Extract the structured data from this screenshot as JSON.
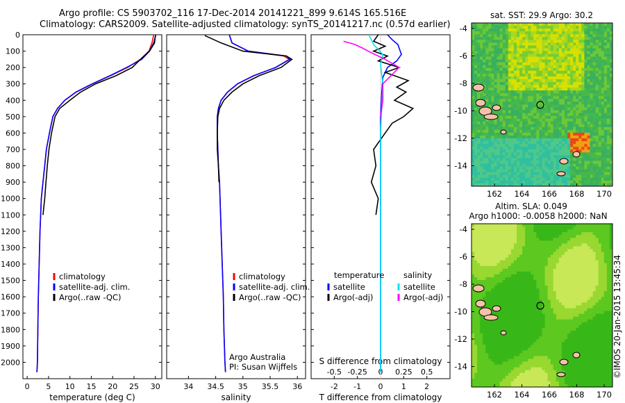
{
  "header": {
    "line1": "Argo profile: CS 5903702_116 17-Dec-2014 20141221_899 9.614S 165.516E",
    "line2": "Climatology: CARS2009. Satellite-adjusted climatology: synTS_20141217.nc (0.57d earlier)"
  },
  "colors": {
    "climatology": "#ff0000",
    "satellite": "#0000ff",
    "argo": "#000000",
    "salinity_satellite": "#00e5ee",
    "salinity_argo": "#ff00ff"
  },
  "chart_data": [
    {
      "type": "line",
      "id": "temperature",
      "xlabel": "temperature (deg C)",
      "ylim": [
        2100,
        0
      ],
      "xlim": [
        -1,
        31.5
      ],
      "xticks": [
        0,
        5,
        10,
        15,
        20,
        25,
        30
      ],
      "yticks": [
        0,
        100,
        200,
        300,
        400,
        500,
        600,
        700,
        800,
        900,
        1000,
        1100,
        1200,
        1300,
        1400,
        1500,
        1600,
        1700,
        1800,
        1900,
        2000
      ],
      "legend": [
        "climatology",
        "satellite-adj. clim.",
        "Argo(..raw -QC)"
      ],
      "series": [
        {
          "name": "climatology",
          "color": "climatology",
          "x": [
            29.6,
            29.2,
            28.5,
            26.5,
            23.5,
            19.5,
            15.3,
            11.5,
            8.8,
            7.1,
            6.0,
            5.2,
            4.5,
            4.1,
            3.7,
            3.3,
            3.0,
            2.8,
            2.6,
            2.5,
            2.4,
            2.3,
            2.25
          ],
          "y": [
            0,
            50,
            100,
            150,
            200,
            250,
            300,
            350,
            400,
            450,
            500,
            600,
            700,
            800,
            900,
            1000,
            1200,
            1400,
            1600,
            1800,
            2000,
            2050,
            2060
          ]
        },
        {
          "name": "satellite-adj. clim.",
          "color": "satellite",
          "x": [
            30.1,
            29.6,
            28.6,
            26.8,
            23.3,
            19.4,
            15.2,
            11.4,
            8.8,
            7.1,
            6.0,
            5.2,
            4.5,
            4.1,
            3.7,
            3.3,
            3.0,
            2.8,
            2.6,
            2.5,
            2.4,
            2.3,
            2.25
          ],
          "y": [
            0,
            50,
            100,
            150,
            200,
            250,
            300,
            350,
            400,
            450,
            500,
            600,
            700,
            800,
            900,
            1000,
            1200,
            1400,
            1600,
            1800,
            2000,
            2050,
            2060
          ]
        },
        {
          "name": "Argo(..raw -QC)",
          "color": "argo",
          "x": [
            30.0,
            29.8,
            28.6,
            26.5,
            24.6,
            20.8,
            16.0,
            12.5,
            10.0,
            7.6,
            6.5,
            5.7,
            5.1,
            4.7,
            4.4,
            4.1,
            3.7
          ],
          "y": [
            5,
            50,
            100,
            150,
            200,
            250,
            300,
            350,
            400,
            450,
            500,
            600,
            700,
            800,
            900,
            1000,
            1100
          ]
        }
      ]
    },
    {
      "type": "line",
      "id": "salinity",
      "xlabel": "salinity",
      "ylim": [
        2100,
        0
      ],
      "xlim": [
        33.6,
        36.15
      ],
      "xticks": [
        34,
        34.5,
        35,
        35.5,
        36
      ],
      "legend": [
        "climatology",
        "satellite-adj. clim.",
        "Argo(..raw -QC)"
      ],
      "credit": [
        "Argo Australia",
        "PI: Susan Wijffels"
      ],
      "series": [
        {
          "name": "climatology",
          "color": "climatology",
          "x": [
            34.75,
            34.8,
            35.1,
            35.75,
            35.85,
            35.6,
            35.2,
            34.9,
            34.72,
            34.6,
            34.55,
            34.53,
            34.53,
            34.54,
            34.55,
            34.57,
            34.6,
            34.62,
            34.64,
            34.65,
            34.67,
            34.68
          ],
          "y": [
            0,
            50,
            100,
            130,
            150,
            200,
            250,
            300,
            350,
            400,
            450,
            500,
            600,
            700,
            800,
            900,
            1200,
            1400,
            1600,
            1800,
            2000,
            2060
          ]
        },
        {
          "name": "satellite-adj. clim.",
          "color": "satellite",
          "x": [
            34.75,
            34.8,
            35.1,
            35.8,
            35.86,
            35.6,
            35.2,
            34.9,
            34.72,
            34.6,
            34.55,
            34.53,
            34.53,
            34.54,
            34.55,
            34.57,
            34.6,
            34.62,
            34.64,
            34.65,
            34.67,
            34.68
          ],
          "y": [
            0,
            50,
            100,
            130,
            150,
            200,
            250,
            300,
            350,
            400,
            450,
            500,
            600,
            700,
            800,
            900,
            1200,
            1400,
            1600,
            1800,
            2000,
            2060
          ]
        },
        {
          "name": "Argo(..raw -QC)",
          "color": "argo",
          "x": [
            34.3,
            34.6,
            35.0,
            35.8,
            35.9,
            35.7,
            35.3,
            35.0,
            34.8,
            34.65,
            34.57,
            34.54,
            34.53,
            34.53,
            34.55,
            34.56
          ],
          "y": [
            5,
            50,
            100,
            130,
            150,
            200,
            250,
            300,
            350,
            400,
            450,
            500,
            600,
            700,
            800,
            900
          ]
        }
      ]
    },
    {
      "type": "line",
      "id": "difference",
      "xlabel": "T difference from climatology",
      "xlabel2": "S difference from climatology",
      "ylim": [
        2100,
        0
      ],
      "xlim": [
        -3,
        3
      ],
      "xticks": [
        -2,
        -1,
        0,
        1,
        2
      ],
      "xticks2": [
        -0.5,
        -0.25,
        0,
        0.25,
        0.5
      ],
      "legend_headers": [
        "temperature",
        "salinity"
      ],
      "legend": [
        "satellite",
        "Argo(-adj)",
        "satellite",
        "Argo(-adj)"
      ],
      "series": [
        {
          "name": "temperature satellite",
          "color": "satellite",
          "x": [
            0.3,
            0.5,
            0.75,
            0.9,
            0.7,
            0.3,
            0.1,
            0.05,
            0,
            0,
            0
          ],
          "y": [
            0,
            30,
            60,
            120,
            160,
            200,
            260,
            350,
            500,
            1000,
            2060
          ]
        },
        {
          "name": "temperature Argo(-adj)",
          "color": "argo",
          "x": [
            -0.1,
            -0.3,
            0.2,
            -0.3,
            0.3,
            -0.1,
            0.8,
            0.2,
            1.2,
            0.7,
            1.1,
            0.6,
            1.4,
            1.0,
            0.5,
            0.3,
            -0.3,
            -0.2,
            -0.4,
            -0.1,
            -0.2
          ],
          "y": [
            0,
            40,
            70,
            100,
            130,
            160,
            200,
            230,
            280,
            320,
            350,
            400,
            450,
            500,
            540,
            580,
            700,
            800,
            900,
            1000,
            1100
          ]
        },
        {
          "name": "salinity satellite",
          "color": "salinity_satellite",
          "x": [
            -0.5,
            -0.3,
            0.1,
            0.0,
            0.1,
            0.0,
            0.0,
            0.0
          ],
          "y": [
            0,
            60,
            120,
            180,
            300,
            600,
            1000,
            2060
          ]
        },
        {
          "name": "salinity Argo(-adj)",
          "color": "salinity_argo",
          "x": [
            -1.6,
            -1.1,
            -0.8,
            -0.4,
            0.2,
            0.8,
            0.1,
            0.1,
            0.0
          ],
          "y": [
            40,
            60,
            80,
            110,
            150,
            200,
            300,
            400,
            500
          ]
        }
      ]
    }
  ],
  "maps": [
    {
      "title": "sat. SST: 29.9 Argo: 30.2",
      "yticks": [
        "-4",
        "-6",
        "-8",
        "-10",
        "-12",
        "-14"
      ],
      "xticks": [
        "162",
        "164",
        "166",
        "168",
        "170"
      ]
    },
    {
      "title1": "Altim. SLA: 0.049",
      "title2": "Argo h1000: -0.0058 h2000: NaN",
      "yticks": [
        "-4",
        "-6",
        "-8",
        "-10",
        "-12",
        "-14"
      ],
      "xticks": [
        "162",
        "164",
        "166",
        "168",
        "170"
      ]
    }
  ],
  "credit_vertical": "©IMOS 20-Jan-2015 13:45:34"
}
